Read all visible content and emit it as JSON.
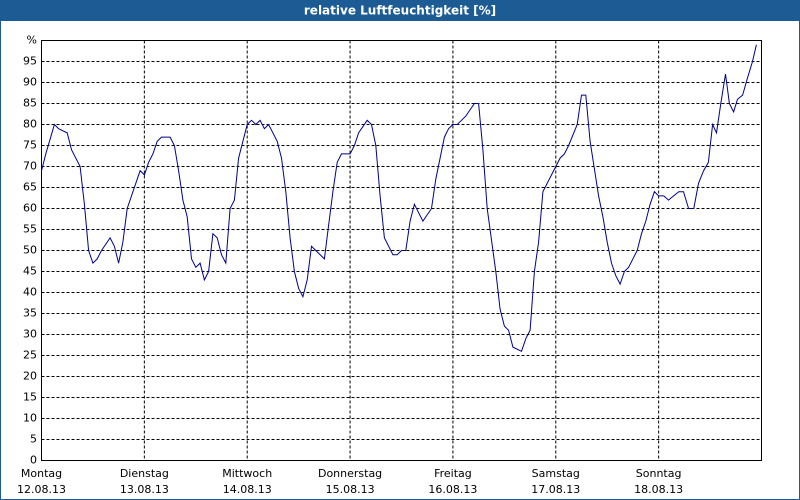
{
  "chart_data": {
    "type": "line",
    "title": "relative Luftfeuchtigkeit [%]",
    "color": "#00008b",
    "grid": true,
    "xlim": [
      0,
      168
    ],
    "ylim": [
      0,
      100
    ],
    "yticks": [
      0,
      5,
      10,
      15,
      20,
      25,
      30,
      35,
      40,
      45,
      50,
      55,
      60,
      65,
      70,
      75,
      80,
      85,
      90,
      95,
      {
        "value": 100,
        "label": "%"
      }
    ],
    "xticks": [
      {
        "value": 0,
        "label": "Montag",
        "date": "12.08.13"
      },
      {
        "value": 24,
        "label": "Dienstag",
        "date": "13.08.13"
      },
      {
        "value": 48,
        "label": "Mittwoch",
        "date": "14.08.13"
      },
      {
        "value": 72,
        "label": "Donnerstag",
        "date": "15.08.13"
      },
      {
        "value": 96,
        "label": "Freitag",
        "date": "16.08.13"
      },
      {
        "value": 120,
        "label": "Samstag",
        "date": "17.08.13"
      },
      {
        "value": 144,
        "label": "Sonntag",
        "date": "18.08.13"
      }
    ],
    "x": [
      0,
      1,
      3,
      4,
      6,
      7,
      9,
      10,
      11,
      12,
      13,
      14,
      16,
      17,
      18,
      19,
      20,
      21,
      22,
      23,
      24,
      25,
      26,
      27,
      28,
      30,
      31,
      32,
      33,
      34,
      35,
      36,
      37,
      38,
      39,
      40,
      41,
      42,
      43,
      44,
      45,
      46,
      47,
      48,
      49,
      50,
      51,
      52,
      53,
      55,
      56,
      57,
      58,
      59,
      60,
      61,
      62,
      63,
      64,
      66,
      67,
      68,
      69,
      70,
      71,
      72,
      73,
      74,
      76,
      77,
      78,
      79,
      80,
      82,
      83,
      84,
      85,
      86,
      87,
      88,
      89,
      91,
      92,
      93,
      94,
      95,
      96,
      97,
      98,
      99,
      101,
      102,
      103,
      104,
      106,
      107,
      108,
      109,
      110,
      112,
      113,
      114,
      115,
      116,
      117,
      119,
      120,
      121,
      122,
      123,
      125,
      126,
      127,
      128,
      130,
      131,
      132,
      133,
      134,
      135,
      136,
      137,
      139,
      140,
      141,
      142,
      143,
      144,
      145.2,
      146.3,
      147.5,
      148.7,
      149.8,
      151,
      152.2,
      153.3,
      154.5,
      155.6,
      156.6,
      157.5,
      158.5,
      159.6,
      160.5,
      161.5,
      162.4,
      163.6,
      164.7,
      165.9,
      166.8
    ],
    "values": [
      69,
      73,
      80,
      79,
      78,
      74,
      70,
      61,
      50,
      47,
      48,
      50,
      53,
      51,
      47,
      52,
      60,
      63,
      66,
      69,
      68,
      71,
      73,
      76,
      77,
      77,
      75,
      69,
      62,
      58,
      48,
      46,
      47,
      43,
      45,
      54,
      53,
      49,
      47,
      60,
      62,
      72,
      76,
      80,
      81,
      80,
      81,
      79,
      80,
      76,
      72,
      64,
      53,
      45,
      41,
      39,
      43,
      51,
      50,
      48,
      56,
      64,
      71,
      73,
      73,
      73,
      75,
      78,
      81,
      80,
      75,
      63,
      53,
      49,
      49,
      50,
      50,
      57,
      61,
      59,
      57,
      60,
      67,
      72,
      77,
      79,
      80,
      80,
      81,
      82,
      85,
      85,
      74,
      60,
      45,
      36,
      32,
      31,
      27,
      26,
      29,
      31,
      45,
      52,
      64,
      68,
      70,
      72,
      73,
      75,
      80,
      87,
      87,
      76,
      63,
      58,
      52,
      47,
      44,
      42,
      45,
      46,
      50,
      54,
      57,
      61,
      64,
      63,
      63,
      62,
      63,
      64,
      64,
      60,
      60,
      66,
      69,
      71,
      80,
      78,
      85,
      92,
      85,
      83,
      86,
      87,
      91,
      95,
      99
    ]
  }
}
